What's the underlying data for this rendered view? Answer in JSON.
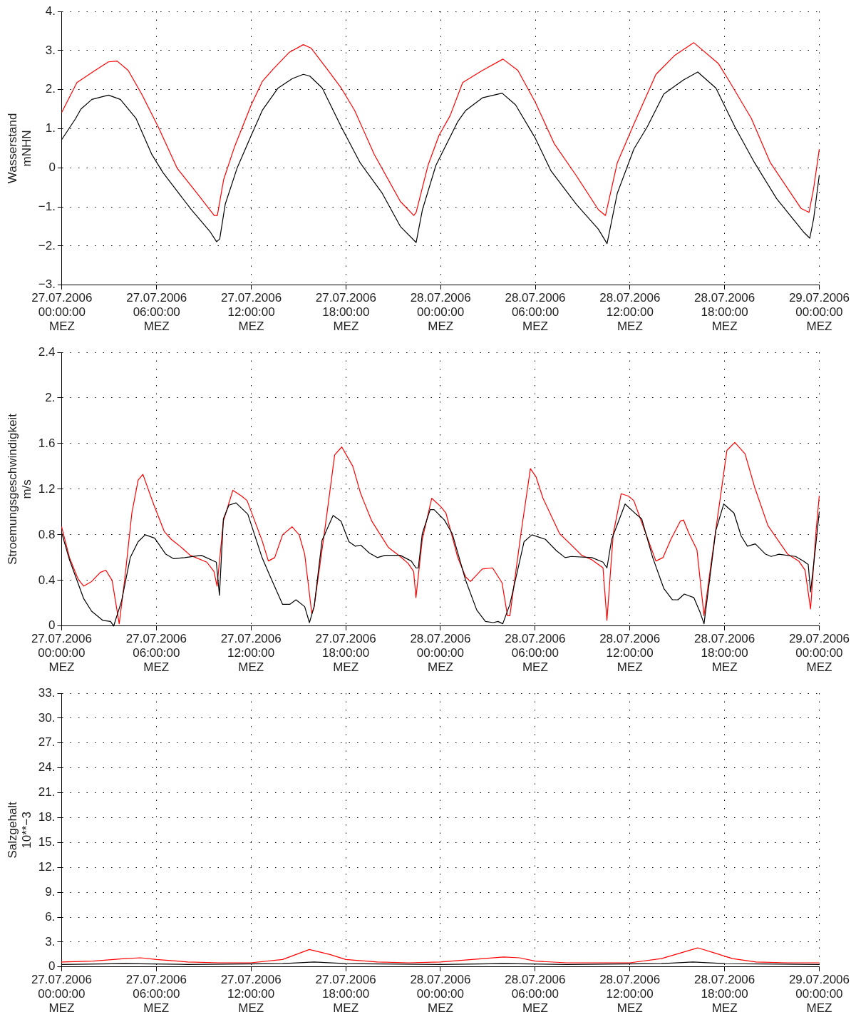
{
  "chart_data": [
    {
      "type": "line",
      "ylabel": "Wasserstand\nmNHN",
      "marker": "none",
      "grid": true,
      "xlim": [
        "2006-07-27T00:00",
        "2006-07-29T00:00"
      ],
      "xticks": [
        {
          "value": "2006-07-27T00:00",
          "label": "27.07.2006\n00:00:00\nMEZ"
        },
        {
          "value": "2006-07-27T06:00",
          "label": "27.07.2006\n06:00:00\nMEZ"
        },
        {
          "value": "2006-07-27T12:00",
          "label": "27.07.2006\n12:00:00\nMEZ"
        },
        {
          "value": "2006-07-27T18:00",
          "label": "27.07.2006\n18:00:00\nMEZ"
        },
        {
          "value": "2006-07-28T00:00",
          "label": "28.07.2006\n00:00:00\nMEZ"
        },
        {
          "value": "2006-07-28T06:00",
          "label": "28.07.2006\n06:00:00\nMEZ"
        },
        {
          "value": "2006-07-28T12:00",
          "label": "28.07.2006\n12:00:00\nMEZ"
        },
        {
          "value": "2006-07-28T18:00",
          "label": "28.07.2006\n18:00:00\nMEZ"
        },
        {
          "value": "2006-07-29T00:00",
          "label": "29.07.2006\n00:00:00\nMEZ"
        }
      ],
      "ylim": [
        -3,
        4
      ],
      "yticks": [
        {
          "value": -3,
          "label": "−3."
        },
        {
          "value": -2,
          "label": "−2."
        },
        {
          "value": -1,
          "label": "−1."
        },
        0,
        {
          "value": 1,
          "label": "1."
        },
        {
          "value": 2,
          "label": "2."
        },
        {
          "value": 3,
          "label": "3."
        },
        {
          "value": 4,
          "label": "4."
        }
      ],
      "series": [
        {
          "color": "#000000",
          "x": [
            "2006-07-27T00:00",
            "2006-07-27T00:52",
            "2006-07-27T01:12",
            "2006-07-27T01:54",
            "2006-07-27T02:57",
            "2006-07-27T03:42",
            "2006-07-27T04:42",
            "2006-07-27T05:42",
            "2006-07-27T06:24",
            "2006-07-27T08:12",
            "2006-07-27T09:24",
            "2006-07-27T09:48",
            "2006-07-27T10:00",
            "2006-07-27T10:21",
            "2006-07-27T11:06",
            "2006-07-27T12:00",
            "2006-07-27T12:42",
            "2006-07-27T13:42",
            "2006-07-27T14:36",
            "2006-07-27T15:18",
            "2006-07-27T15:42",
            "2006-07-27T16:30",
            "2006-07-27T17:42",
            "2006-07-27T18:54",
            "2006-07-27T20:18",
            "2006-07-27T21:27",
            "2006-07-27T22:27",
            "2006-07-27T22:51",
            "2006-07-27T23:42",
            "2006-07-28T01:06",
            "2006-07-28T01:36",
            "2006-07-28T02:39",
            "2006-07-28T03:54",
            "2006-07-28T04:45",
            "2006-07-28T06:00",
            "2006-07-28T07:00",
            "2006-07-28T08:36",
            "2006-07-28T10:00",
            "2006-07-28T10:33",
            "2006-07-28T11:12",
            "2006-07-28T12:15",
            "2006-07-28T13:06",
            "2006-07-28T14:09",
            "2006-07-28T15:24",
            "2006-07-28T16:18",
            "2006-07-28T17:27",
            "2006-07-28T18:39",
            "2006-07-28T19:54",
            "2006-07-28T21:18",
            "2006-07-28T23:00",
            "2006-07-28T23:24",
            "2006-07-28T23:39",
            "2006-07-29T00:00"
          ],
          "values": [
            0.73,
            1.26,
            1.5,
            1.75,
            1.86,
            1.75,
            1.26,
            0.34,
            -0.12,
            -1.07,
            -1.64,
            -1.89,
            -1.82,
            -0.93,
            -0.01,
            0.83,
            1.47,
            2.04,
            2.28,
            2.39,
            2.35,
            2.04,
            1.05,
            0.13,
            -0.65,
            -1.5,
            -1.91,
            -1.07,
            0.06,
            1.19,
            1.47,
            1.79,
            1.91,
            1.61,
            0.76,
            -0.08,
            -0.93,
            -1.57,
            -1.94,
            -0.65,
            0.48,
            1.05,
            1.89,
            2.25,
            2.45,
            2.04,
            1.05,
            0.13,
            -0.79,
            -1.64,
            -1.8,
            -1.29,
            -0.19
          ]
        },
        {
          "color": "#ff0000",
          "x": [
            "2006-07-27T00:00",
            "2006-07-27T00:57",
            "2006-07-27T02:06",
            "2006-07-27T02:57",
            "2006-07-27T03:30",
            "2006-07-27T04:12",
            "2006-07-27T05:03",
            "2006-07-27T06:06",
            "2006-07-27T07:18",
            "2006-07-27T08:42",
            "2006-07-27T09:39",
            "2006-07-27T09:51",
            "2006-07-27T10:15",
            "2006-07-27T10:57",
            "2006-07-27T12:00",
            "2006-07-27T12:42",
            "2006-07-27T13:24",
            "2006-07-27T14:24",
            "2006-07-27T15:18",
            "2006-07-27T15:48",
            "2006-07-27T16:48",
            "2006-07-27T17:42",
            "2006-07-27T18:33",
            "2006-07-27T19:48",
            "2006-07-27T21:27",
            "2006-07-27T22:18",
            "2006-07-27T22:27",
            "2006-07-27T23:12",
            "2006-07-27T23:54",
            "2006-07-28T00:36",
            "2006-07-28T01:24",
            "2006-07-28T02:39",
            "2006-07-28T03:57",
            "2006-07-28T04:54",
            "2006-07-28T06:00",
            "2006-07-28T07:12",
            "2006-07-28T08:36",
            "2006-07-28T10:00",
            "2006-07-28T10:27",
            "2006-07-28T11:12",
            "2006-07-28T12:15",
            "2006-07-28T13:39",
            "2006-07-28T14:51",
            "2006-07-28T16:03",
            "2006-07-28T17:36",
            "2006-07-28T18:21",
            "2006-07-28T19:42",
            "2006-07-28T20:54",
            "2006-07-28T22:51",
            "2006-07-28T23:21",
            "2006-07-28T23:39",
            "2006-07-29T00:00"
          ],
          "values": [
            1.43,
            2.18,
            2.49,
            2.71,
            2.73,
            2.49,
            1.89,
            1.05,
            -0.01,
            -0.72,
            -1.22,
            -1.22,
            -0.3,
            0.55,
            1.61,
            2.21,
            2.53,
            2.95,
            3.15,
            3.06,
            2.53,
            2.04,
            1.47,
            0.34,
            -0.86,
            -1.22,
            -1.14,
            0.06,
            0.83,
            1.33,
            2.18,
            2.49,
            2.78,
            2.49,
            1.68,
            0.62,
            -0.2,
            -1.07,
            -1.22,
            0.13,
            1.12,
            2.39,
            2.88,
            3.2,
            2.67,
            2.18,
            1.26,
            0.13,
            -1.04,
            -1.14,
            -0.51,
            0.47
          ]
        }
      ]
    },
    {
      "type": "line",
      "ylabel": "Stroemungsgeschwindigkeit\nm/s",
      "marker": "none",
      "grid": true,
      "xlim": [
        "2006-07-27T00:00",
        "2006-07-29T00:00"
      ],
      "xticks": [
        {
          "value": "2006-07-27T00:00",
          "label": "27.07.2006\n00:00:00\nMEZ"
        },
        {
          "value": "2006-07-27T06:00",
          "label": "27.07.2006\n06:00:00\nMEZ"
        },
        {
          "value": "2006-07-27T12:00",
          "label": "27.07.2006\n12:00:00\nMEZ"
        },
        {
          "value": "2006-07-27T18:00",
          "label": "27.07.2006\n18:00:00\nMEZ"
        },
        {
          "value": "2006-07-28T00:00",
          "label": "28.07.2006\n00:00:00\nMEZ"
        },
        {
          "value": "2006-07-28T06:00",
          "label": "28.07.2006\n06:00:00\nMEZ"
        },
        {
          "value": "2006-07-28T12:00",
          "label": "28.07.2006\n12:00:00\nMEZ"
        },
        {
          "value": "2006-07-28T18:00",
          "label": "28.07.2006\n18:00:00\nMEZ"
        },
        {
          "value": "2006-07-29T00:00",
          "label": "29.07.2006\n00:00:00\nMEZ"
        }
      ],
      "ylim": [
        0,
        2.4
      ],
      "yticks": [
        0,
        0.4,
        0.8,
        1.2,
        1.6,
        {
          "value": 2,
          "label": "2."
        },
        2.4
      ],
      "series": [
        {
          "color": "#000000",
          "x": [
            "2006-07-27T00:00",
            "2006-07-27T00:30",
            "2006-07-27T01:24",
            "2006-07-27T01:54",
            "2006-07-27T02:36",
            "2006-07-27T03:06",
            "2006-07-27T03:18",
            "2006-07-27T03:48",
            "2006-07-27T04:21",
            "2006-07-27T04:51",
            "2006-07-27T05:18",
            "2006-07-27T05:54",
            "2006-07-27T06:36",
            "2006-07-27T07:06",
            "2006-07-27T07:48",
            "2006-07-27T08:51",
            "2006-07-27T09:48",
            "2006-07-27T10:00",
            "2006-07-27T10:15",
            "2006-07-27T10:36",
            "2006-07-27T11:03",
            "2006-07-27T11:48",
            "2006-07-27T12:42",
            "2006-07-27T13:12",
            "2006-07-27T14:00",
            "2006-07-27T14:27",
            "2006-07-27T14:51",
            "2006-07-27T15:24",
            "2006-07-27T15:42",
            "2006-07-27T16:00",
            "2006-07-27T16:30",
            "2006-07-27T17:12",
            "2006-07-27T17:42",
            "2006-07-27T18:12",
            "2006-07-27T18:36",
            "2006-07-27T18:57",
            "2006-07-27T19:30",
            "2006-07-27T20:00",
            "2006-07-27T20:30",
            "2006-07-27T21:27",
            "2006-07-27T22:09",
            "2006-07-27T22:27",
            "2006-07-27T22:36",
            "2006-07-27T22:51",
            "2006-07-27T23:21",
            "2006-07-27T23:36",
            "2006-07-28T00:15",
            "2006-07-28T00:45",
            "2006-07-28T01:36",
            "2006-07-28T02:18",
            "2006-07-28T02:51",
            "2006-07-28T03:21",
            "2006-07-28T03:39",
            "2006-07-28T03:57",
            "2006-07-28T04:24",
            "2006-07-28T05:18",
            "2006-07-28T05:48",
            "2006-07-28T06:39",
            "2006-07-28T07:21",
            "2006-07-28T07:54",
            "2006-07-28T08:18",
            "2006-07-28T09:36",
            "2006-07-28T10:18",
            "2006-07-28T10:33",
            "2006-07-28T10:51",
            "2006-07-28T11:42",
            "2006-07-28T12:24",
            "2006-07-28T12:45",
            "2006-07-28T13:27",
            "2006-07-28T14:09",
            "2006-07-28T14:42",
            "2006-07-28T15:03",
            "2006-07-28T15:27",
            "2006-07-28T16:03",
            "2006-07-28T16:27",
            "2006-07-28T16:42",
            "2006-07-28T17:27",
            "2006-07-28T17:57",
            "2006-07-28T18:36",
            "2006-07-28T19:03",
            "2006-07-28T19:27",
            "2006-07-28T19:57",
            "2006-07-28T20:36",
            "2006-07-28T20:57",
            "2006-07-28T21:27",
            "2006-07-28T22:30",
            "2006-07-28T23:00",
            "2006-07-28T23:18",
            "2006-07-28T23:27",
            "2006-07-28T23:45",
            "2006-07-29T00:00"
          ],
          "values": [
            0.82,
            0.58,
            0.24,
            0.13,
            0.05,
            0.04,
            0,
            0.22,
            0.6,
            0.74,
            0.8,
            0.77,
            0.63,
            0.59,
            0.6,
            0.62,
            0.56,
            0.27,
            0.94,
            1.06,
            1.08,
            0.98,
            0.6,
            0.44,
            0.19,
            0.19,
            0.23,
            0.17,
            0.03,
            0.17,
            0.75,
            0.97,
            0.92,
            0.74,
            0.7,
            0.71,
            0.64,
            0.6,
            0.62,
            0.62,
            0.57,
            0.51,
            0.51,
            0.81,
            1.02,
            1.02,
            0.93,
            0.81,
            0.4,
            0.14,
            0.04,
            0.03,
            0.04,
            0.02,
            0.19,
            0.74,
            0.8,
            0.76,
            0.66,
            0.6,
            0.61,
            0.6,
            0.56,
            0.51,
            0.76,
            1.07,
            0.98,
            0.94,
            0.6,
            0.33,
            0.23,
            0.23,
            0.28,
            0.25,
            0.12,
            0.02,
            0.84,
            1.07,
            0.99,
            0.79,
            0.7,
            0.72,
            0.63,
            0.61,
            0.63,
            0.61,
            0.57,
            0.54,
            0.3,
            0.67,
            1.0
          ]
        },
        {
          "color": "#ff0000",
          "x": [
            "2006-07-27T00:00",
            "2006-07-27T00:30",
            "2006-07-27T01:03",
            "2006-07-27T01:24",
            "2006-07-27T01:54",
            "2006-07-27T02:27",
            "2006-07-27T02:48",
            "2006-07-27T03:12",
            "2006-07-27T03:39",
            "2006-07-27T04:00",
            "2006-07-27T04:27",
            "2006-07-27T04:51",
            "2006-07-27T05:09",
            "2006-07-27T05:51",
            "2006-07-27T06:30",
            "2006-07-27T06:57",
            "2006-07-27T07:30",
            "2006-07-27T08:09",
            "2006-07-27T09:12",
            "2006-07-27T09:39",
            "2006-07-27T09:51",
            "2006-07-27T10:15",
            "2006-07-27T10:51",
            "2006-07-27T11:24",
            "2006-07-27T11:45",
            "2006-07-27T12:42",
            "2006-07-27T13:06",
            "2006-07-27T13:30",
            "2006-07-27T14:00",
            "2006-07-27T14:36",
            "2006-07-27T15:03",
            "2006-07-27T15:24",
            "2006-07-27T15:51",
            "2006-07-27T16:00",
            "2006-07-27T16:42",
            "2006-07-27T17:18",
            "2006-07-27T17:45",
            "2006-07-27T18:27",
            "2006-07-27T18:57",
            "2006-07-27T19:39",
            "2006-07-27T20:42",
            "2006-07-27T21:27",
            "2006-07-27T21:57",
            "2006-07-27T22:18",
            "2006-07-27T22:27",
            "2006-07-27T22:51",
            "2006-07-27T23:27",
            "2006-07-28T00:00",
            "2006-07-28T00:21",
            "2006-07-28T01:06",
            "2006-07-28T01:36",
            "2006-07-28T01:54",
            "2006-07-28T02:39",
            "2006-07-28T03:18",
            "2006-07-28T03:54",
            "2006-07-28T04:15",
            "2006-07-28T04:24",
            "2006-07-28T05:06",
            "2006-07-28T05:42",
            "2006-07-28T06:03",
            "2006-07-28T06:30",
            "2006-07-28T07:33",
            "2006-07-28T08:09",
            "2006-07-28T08:57",
            "2006-07-28T09:36",
            "2006-07-28T10:18",
            "2006-07-28T10:33",
            "2006-07-28T10:57",
            "2006-07-28T11:27",
            "2006-07-28T11:54",
            "2006-07-28T12:15",
            "2006-07-28T12:45",
            "2006-07-28T13:39",
            "2006-07-28T14:06",
            "2006-07-28T14:36",
            "2006-07-28T15:12",
            "2006-07-28T15:24",
            "2006-07-28T15:45",
            "2006-07-28T16:15",
            "2006-07-28T16:42",
            "2006-07-28T17:06",
            "2006-07-28T18:09",
            "2006-07-28T18:39",
            "2006-07-28T19:18",
            "2006-07-28T19:54",
            "2006-07-28T20:45",
            "2006-07-28T22:00",
            "2006-07-28T22:42",
            "2006-07-28T23:06",
            "2006-07-28T23:27",
            "2006-07-28T23:48",
            "2006-07-29T00:00"
          ],
          "values": [
            0.87,
            0.6,
            0.41,
            0.35,
            0.39,
            0.47,
            0.49,
            0.4,
            0.02,
            0.41,
            0.99,
            1.28,
            1.33,
            1.06,
            0.83,
            0.76,
            0.7,
            0.62,
            0.56,
            0.48,
            0.35,
            0.92,
            1.19,
            1.14,
            1.1,
            0.75,
            0.57,
            0.6,
            0.8,
            0.87,
            0.8,
            0.63,
            0.11,
            0.17,
            0.87,
            1.5,
            1.57,
            1.4,
            1.16,
            0.92,
            0.69,
            0.61,
            0.55,
            0.48,
            0.25,
            0.76,
            1.12,
            1.05,
            0.99,
            0.6,
            0.43,
            0.39,
            0.5,
            0.51,
            0.38,
            0.09,
            0.09,
            0.81,
            1.38,
            1.31,
            1.12,
            0.81,
            0.73,
            0.62,
            0.58,
            0.51,
            0.05,
            0.81,
            1.16,
            1.14,
            1.1,
            0.91,
            0.57,
            0.6,
            0.76,
            0.92,
            0.93,
            0.81,
            0.67,
            0.09,
            0.5,
            1.54,
            1.61,
            1.51,
            1.22,
            0.88,
            0.63,
            0.57,
            0.49,
            0.15,
            0.84,
            1.14
          ]
        }
      ]
    },
    {
      "type": "line",
      "ylabel": "Salzgehalt\n10**−3",
      "marker": "none",
      "grid": true,
      "xlim": [
        "2006-07-27T00:00",
        "2006-07-29T00:00"
      ],
      "xticks": [
        {
          "value": "2006-07-27T00:00",
          "label": "27.07.2006\n00:00:00\nMEZ"
        },
        {
          "value": "2006-07-27T06:00",
          "label": "27.07.2006\n06:00:00\nMEZ"
        },
        {
          "value": "2006-07-27T12:00",
          "label": "27.07.2006\n12:00:00\nMEZ"
        },
        {
          "value": "2006-07-27T18:00",
          "label": "27.07.2006\n18:00:00\nMEZ"
        },
        {
          "value": "2006-07-28T00:00",
          "label": "28.07.2006\n00:00:00\nMEZ"
        },
        {
          "value": "2006-07-28T06:00",
          "label": "28.07.2006\n06:00:00\nMEZ"
        },
        {
          "value": "2006-07-28T12:00",
          "label": "28.07.2006\n12:00:00\nMEZ"
        },
        {
          "value": "2006-07-28T18:00",
          "label": "28.07.2006\n18:00:00\nMEZ"
        },
        {
          "value": "2006-07-29T00:00",
          "label": "29.07.2006\n00:00:00\nMEZ"
        }
      ],
      "ylim": [
        0,
        33
      ],
      "yticks": [
        0,
        {
          "value": 3,
          "label": "3."
        },
        {
          "value": 6,
          "label": "6."
        },
        {
          "value": 9,
          "label": "9."
        },
        {
          "value": 12,
          "label": "12."
        },
        {
          "value": 15,
          "label": "15."
        },
        {
          "value": 18,
          "label": "18."
        },
        {
          "value": 21,
          "label": "21."
        },
        {
          "value": 24,
          "label": "24."
        },
        {
          "value": 27,
          "label": "27."
        },
        {
          "value": 30,
          "label": "30."
        },
        {
          "value": 33,
          "label": "33."
        }
      ],
      "series": [
        {
          "color": "#000000",
          "x": [
            "2006-07-27T00:00",
            "2006-07-27T04:00",
            "2006-07-27T08:00",
            "2006-07-27T14:00",
            "2006-07-27T16:00",
            "2006-07-27T18:00",
            "2006-07-28T00:00",
            "2006-07-28T04:00",
            "2006-07-28T08:00",
            "2006-07-28T14:00",
            "2006-07-28T16:00",
            "2006-07-28T18:00",
            "2006-07-29T00:00"
          ],
          "values": [
            0.3,
            0.4,
            0.3,
            0.4,
            0.6,
            0.4,
            0.3,
            0.4,
            0.3,
            0.4,
            0.6,
            0.4,
            0.3
          ]
        },
        {
          "color": "#ff0000",
          "x": [
            "2006-07-27T00:00",
            "2006-07-27T02:00",
            "2006-07-27T04:00",
            "2006-07-27T05:00",
            "2006-07-27T06:00",
            "2006-07-27T08:00",
            "2006-07-27T10:00",
            "2006-07-27T12:00",
            "2006-07-27T14:00",
            "2006-07-27T15:42",
            "2006-07-27T17:00",
            "2006-07-27T18:00",
            "2006-07-27T20:00",
            "2006-07-27T22:00",
            "2006-07-28T00:00",
            "2006-07-28T02:00",
            "2006-07-28T04:00",
            "2006-07-28T05:00",
            "2006-07-28T06:00",
            "2006-07-28T08:00",
            "2006-07-28T10:00",
            "2006-07-28T12:00",
            "2006-07-28T14:00",
            "2006-07-28T16:18",
            "2006-07-28T17:30",
            "2006-07-28T18:30",
            "2006-07-28T20:00",
            "2006-07-28T22:00",
            "2006-07-29T00:00"
          ],
          "values": [
            0.6,
            0.7,
            1.0,
            1.1,
            0.9,
            0.6,
            0.5,
            0.5,
            0.9,
            2.1,
            1.5,
            0.9,
            0.6,
            0.5,
            0.6,
            0.9,
            1.2,
            1.1,
            0.7,
            0.5,
            0.5,
            0.5,
            1.0,
            2.3,
            1.6,
            1.0,
            0.6,
            0.5,
            0.5
          ]
        }
      ]
    }
  ]
}
